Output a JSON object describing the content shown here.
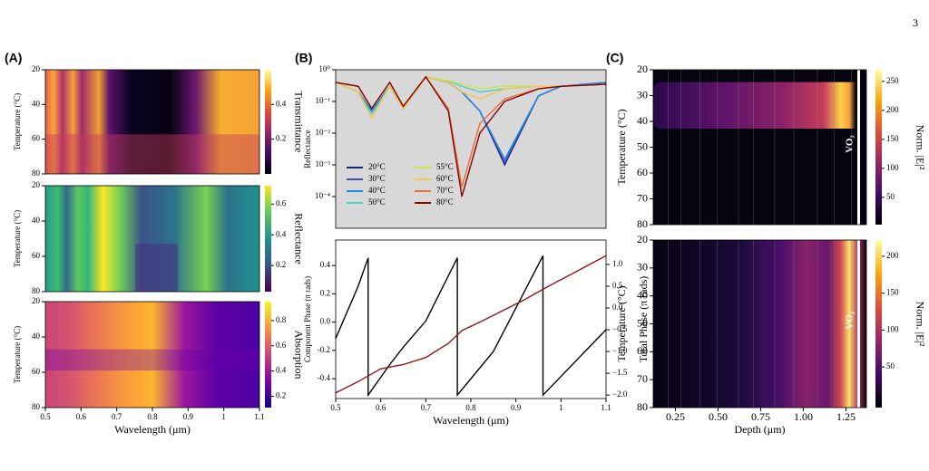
{
  "page_number": "3",
  "chart_data": [
    {
      "type": "heatmap",
      "panel_label": "(A)",
      "ylabel": "Temperature (°C)",
      "colorbar_label": "Transmittance",
      "colormap": "inferno",
      "xlim": [
        0.5,
        1.1
      ],
      "ylim": [
        20,
        80
      ],
      "yticks": [
        20,
        40,
        60,
        80
      ],
      "colorbar_lim": [
        0,
        0.6
      ],
      "colorbar_ticks": [
        0.2,
        0.4
      ]
    },
    {
      "type": "heatmap",
      "ylabel": "Temperature (°C)",
      "colorbar_label": "Reflectance",
      "colormap": "viridis",
      "xlim": [
        0.5,
        1.1
      ],
      "ylim": [
        20,
        80
      ],
      "yticks": [
        20,
        40,
        60,
        80
      ],
      "colorbar_lim": [
        0.03,
        0.72
      ],
      "colorbar_ticks": [
        0.2,
        0.4,
        0.6
      ]
    },
    {
      "type": "heatmap",
      "ylabel": "Temperature (°C)",
      "xlabel": "Wavelength (μm)",
      "colorbar_label": "Absorption",
      "colormap": "plasma",
      "xlim": [
        0.5,
        1.1
      ],
      "ylim": [
        20,
        80
      ],
      "yticks": [
        20,
        40,
        60,
        80
      ],
      "xticks": [
        0.5,
        0.6,
        0.7,
        0.8,
        0.9,
        1.0,
        1.1
      ],
      "colorbar_lim": [
        0.11,
        0.95
      ],
      "colorbar_ticks": [
        0.2,
        0.4,
        0.6,
        0.8
      ]
    },
    {
      "type": "line",
      "panel_label": "(B)",
      "ylabel": "Reflectance",
      "log_y": true,
      "xlim": [
        0.5,
        1.1
      ],
      "ylim": [
        1e-05,
        1
      ],
      "yticks": [
        {
          "value": 1,
          "label": "10⁰"
        },
        {
          "value": 0.1,
          "label": "10⁻¹"
        },
        {
          "value": 0.01,
          "label": "10⁻²"
        },
        {
          "value": 0.001,
          "label": "10⁻³"
        },
        {
          "value": 0.0001,
          "label": "10⁻⁴"
        }
      ],
      "x": [
        0.5,
        0.55,
        0.58,
        0.62,
        0.65,
        0.7,
        0.75,
        0.78,
        0.82,
        0.875,
        0.95,
        1.0,
        1.1
      ],
      "series": [
        {
          "name": "20°C",
          "color": "#1a237e",
          "values": [
            0.4,
            0.2,
            0.05,
            0.3,
            0.06,
            0.6,
            0.4,
            0.2,
            0.05,
            0.001,
            0.15,
            0.3,
            0.4
          ]
        },
        {
          "name": "30°C",
          "color": "#3f51b5",
          "values": [
            0.4,
            0.2,
            0.05,
            0.3,
            0.06,
            0.6,
            0.4,
            0.2,
            0.05,
            0.0012,
            0.15,
            0.3,
            0.4
          ]
        },
        {
          "name": "40°C",
          "color": "#1e88e5",
          "values": [
            0.4,
            0.2,
            0.05,
            0.3,
            0.06,
            0.6,
            0.4,
            0.2,
            0.05,
            0.0015,
            0.15,
            0.3,
            0.4
          ]
        },
        {
          "name": "50°C",
          "color": "#4dd0c8",
          "values": [
            0.4,
            0.2,
            0.04,
            0.3,
            0.06,
            0.6,
            0.45,
            0.3,
            0.2,
            0.25,
            0.3,
            0.3,
            0.35
          ]
        },
        {
          "name": "55°C",
          "color": "#c6e84f",
          "values": [
            0.4,
            0.2,
            0.03,
            0.3,
            0.06,
            0.6,
            0.45,
            0.35,
            0.25,
            0.3,
            0.3,
            0.3,
            0.35
          ]
        },
        {
          "name": "60°C",
          "color": "#f6c453",
          "values": [
            0.4,
            0.2,
            0.03,
            0.3,
            0.06,
            0.6,
            0.4,
            0.2,
            0.12,
            0.25,
            0.3,
            0.3,
            0.35
          ]
        },
        {
          "name": "70°C",
          "color": "#e8703a",
          "values": [
            0.4,
            0.3,
            0.06,
            0.4,
            0.07,
            0.6,
            0.06,
            0.0002,
            0.02,
            0.12,
            0.25,
            0.3,
            0.35
          ]
        },
        {
          "name": "80°C",
          "color": "#8b0000",
          "values": [
            0.4,
            0.3,
            0.06,
            0.4,
            0.07,
            0.6,
            0.05,
            0.0001,
            0.01,
            0.1,
            0.25,
            0.3,
            0.35
          ]
        }
      ]
    },
    {
      "type": "line",
      "ylabel": "Component Phase (π rads)",
      "y2label": "Total Phase (π rads)",
      "xlabel": "Wavelength (μm)",
      "xlim": [
        0.5,
        1.1
      ],
      "ylim": [
        -0.54,
        0.58
      ],
      "y2lim": [
        -2.08,
        1.56
      ],
      "xticks": [
        0.5,
        0.6,
        0.7,
        0.8,
        0.9,
        1.0,
        1.1
      ],
      "yticks": [
        0.4,
        0.2,
        {
          "value": 0,
          "label": "0.0"
        },
        -0.2,
        -0.4
      ],
      "y2ticks": [
        {
          "value": 1,
          "label": "1.0"
        },
        0.5,
        {
          "value": 0,
          "label": "0.0"
        },
        {
          "value": -0.5,
          "label": "−0.5"
        },
        {
          "value": -1,
          "label": "−1.0"
        },
        {
          "value": -1.5,
          "label": "−1.5"
        },
        {
          "value": -2,
          "label": "−2.0"
        }
      ],
      "series": [
        {
          "color": "#000000",
          "axis": "y2",
          "x": [
            0.5,
            0.55,
            0.572,
            0.5721,
            0.62,
            0.65,
            0.7,
            0.77,
            0.7701,
            0.85,
            0.96,
            0.9601,
            1.1
          ],
          "values": [
            -0.7,
            0.5,
            1.15,
            -2.0,
            -1.3,
            -0.9,
            -0.3,
            1.15,
            -2.0,
            -1.0,
            1.2,
            -2.0,
            -0.5
          ]
        },
        {
          "color": "#8b1a1a",
          "x": [
            0.5,
            0.55,
            0.6,
            0.65,
            0.7,
            0.75,
            0.78,
            0.82,
            0.87,
            0.92,
            0.97,
            1.03,
            1.1
          ],
          "values": [
            -0.5,
            -0.42,
            -0.33,
            -0.3,
            -0.25,
            -0.15,
            -0.06,
            0.0,
            0.08,
            0.16,
            0.25,
            0.35,
            0.47
          ]
        }
      ]
    },
    {
      "type": "heatmap",
      "panel_label": "(C)",
      "ylabel": "Temperature (°C)",
      "colorbar_label": "Norm. |E|²",
      "colormap": "inferno",
      "annotation": "VO₂",
      "xlim": [
        0.12,
        1.37
      ],
      "ylim": [
        20,
        80
      ],
      "yticks": [
        20,
        30,
        40,
        50,
        60,
        70,
        80
      ],
      "colorbar_lim": [
        3,
        270
      ],
      "colorbar_ticks": [
        50,
        100,
        150,
        200,
        250
      ]
    },
    {
      "type": "heatmap",
      "ylabel": "Temperature (°C)",
      "xlabel": "Depth (μm)",
      "colorbar_label": "Norm. |E|²",
      "colormap": "inferno",
      "annotation": "VO₂",
      "xlim": [
        0.12,
        1.37
      ],
      "ylim": [
        20,
        80
      ],
      "yticks": [
        20,
        30,
        40,
        50,
        60,
        70,
        80
      ],
      "xticks": [
        0.25,
        {
          "value": 0.5,
          "label": "0.50"
        },
        0.75,
        {
          "value": 1,
          "label": "1.00"
        },
        1.25
      ],
      "colorbar_lim": [
        -5,
        222
      ],
      "colorbar_ticks": [
        50,
        100,
        150,
        200
      ]
    }
  ]
}
